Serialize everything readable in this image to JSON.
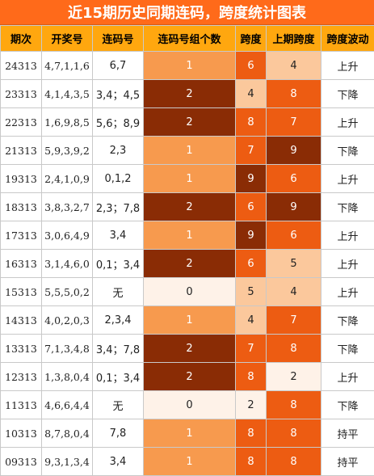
{
  "title": "近15期历史同期连码，跨度统计图表",
  "headers": [
    "期次",
    "开奖号",
    "连码号",
    "连码号组个数",
    "跨度",
    "上期跨度",
    "跨度波动"
  ],
  "colors": {
    "title_bg": "#ff6a1a",
    "header_bg": "#ffa70f",
    "dark": "#8a2c05",
    "orange": "#ed5c12",
    "mid": "#f79a4e",
    "light": "#fbc89c",
    "pale": "#fef2e8"
  },
  "rows": [
    {
      "qc": "24313",
      "kj": "4,7,1,1,6",
      "lm": "6,7",
      "zs": "1",
      "kd": "6",
      "sq": "4",
      "bd": "上升"
    },
    {
      "qc": "23313",
      "kj": "4,1,4,3,5",
      "lm": "3,4；4,5",
      "zs": "2",
      "kd": "4",
      "sq": "8",
      "bd": "下降"
    },
    {
      "qc": "22313",
      "kj": "1,6,9,8,5",
      "lm": "5,6；8,9",
      "zs": "2",
      "kd": "8",
      "sq": "7",
      "bd": "上升"
    },
    {
      "qc": "21313",
      "kj": "5,9,3,9,2",
      "lm": "2,3",
      "zs": "1",
      "kd": "7",
      "sq": "9",
      "bd": "下降"
    },
    {
      "qc": "19313",
      "kj": "2,4,1,0,9",
      "lm": "0,1,2",
      "zs": "1",
      "kd": "9",
      "sq": "6",
      "bd": "上升"
    },
    {
      "qc": "18313",
      "kj": "3,8,3,2,7",
      "lm": "2,3；7,8",
      "zs": "2",
      "kd": "6",
      "sq": "9",
      "bd": "下降"
    },
    {
      "qc": "17313",
      "kj": "3,0,6,4,9",
      "lm": "3,4",
      "zs": "1",
      "kd": "9",
      "sq": "6",
      "bd": "上升"
    },
    {
      "qc": "16313",
      "kj": "3,1,4,6,0",
      "lm": "0,1；3,4",
      "zs": "2",
      "kd": "6",
      "sq": "5",
      "bd": "上升"
    },
    {
      "qc": "15313",
      "kj": "5,5,5,0,2",
      "lm": "无",
      "zs": "0",
      "kd": "5",
      "sq": "4",
      "bd": "上升"
    },
    {
      "qc": "14313",
      "kj": "4,0,2,0,3",
      "lm": "2,3,4",
      "zs": "1",
      "kd": "4",
      "sq": "7",
      "bd": "下降"
    },
    {
      "qc": "13313",
      "kj": "7,1,3,4,8",
      "lm": "3,4；7,8",
      "zs": "2",
      "kd": "7",
      "sq": "8",
      "bd": "下降"
    },
    {
      "qc": "12313",
      "kj": "1,3,8,0,4",
      "lm": "0,1；3,4",
      "zs": "2",
      "kd": "8",
      "sq": "2",
      "bd": "上升"
    },
    {
      "qc": "11313",
      "kj": "4,6,6,4,4",
      "lm": "无",
      "zs": "0",
      "kd": "2",
      "sq": "8",
      "bd": "下降"
    },
    {
      "qc": "10313",
      "kj": "8,7,8,0,4",
      "lm": "7,8",
      "zs": "1",
      "kd": "8",
      "sq": "8",
      "bd": "持平"
    },
    {
      "qc": "09313",
      "kj": "9,3,1,3,4",
      "lm": "3,4",
      "zs": "1",
      "kd": "8",
      "sq": "8",
      "bd": "持平"
    }
  ]
}
